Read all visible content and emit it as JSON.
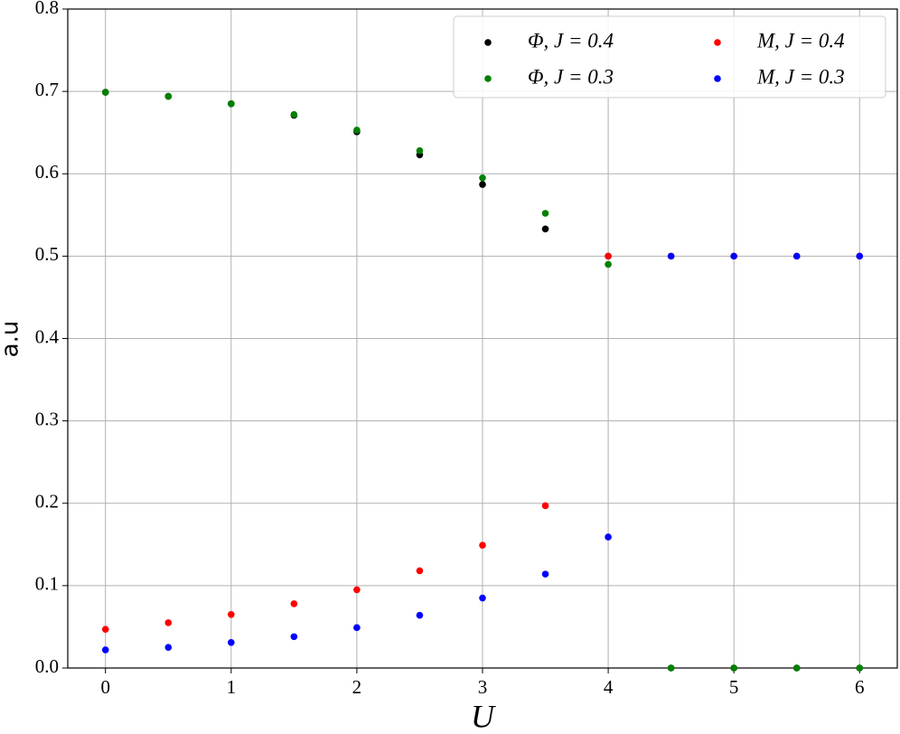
{
  "chart_data": {
    "type": "scatter",
    "x": [
      0,
      0.5,
      1,
      1.5,
      2,
      2.5,
      3,
      3.5,
      4,
      4.5,
      5,
      5.5,
      6
    ],
    "series": [
      {
        "name": "Φ, J = 0.4",
        "color": "#000000",
        "values": [
          0.699,
          0.694,
          0.685,
          0.671,
          0.651,
          0.623,
          0.587,
          0.533,
          0.5,
          0,
          0,
          0,
          0
        ]
      },
      {
        "name": "Φ, J = 0.3",
        "color": "#008000",
        "values": [
          0.699,
          0.694,
          0.685,
          0.672,
          0.653,
          0.628,
          0.595,
          0.552,
          0.49,
          0,
          0,
          0,
          0
        ]
      },
      {
        "name": "M, J = 0.4",
        "color": "#ff0000",
        "values": [
          0.047,
          0.055,
          0.065,
          0.078,
          0.095,
          0.118,
          0.149,
          0.197,
          0.5,
          0.5,
          0.5,
          0.5,
          0.5
        ]
      },
      {
        "name": "M, J = 0.3",
        "color": "#0000ff",
        "values": [
          0.022,
          0.025,
          0.031,
          0.038,
          0.049,
          0.064,
          0.085,
          0.114,
          0.159,
          0.5,
          0.5,
          0.5,
          0.5
        ]
      }
    ],
    "x_label": "U",
    "y_label": "a.u",
    "xlim": [
      -0.3,
      6.3
    ],
    "ylim": [
      0,
      0.8
    ],
    "xticks": [
      0,
      1,
      2,
      3,
      4,
      5,
      6
    ],
    "yticks": [
      {
        "value": 0,
        "label": "0.0"
      },
      0.1,
      0.2,
      0.3,
      0.4,
      0.5,
      0.6,
      0.7,
      0.8
    ],
    "grid": true,
    "legend": "upper right",
    "legend_columns": 2
  }
}
